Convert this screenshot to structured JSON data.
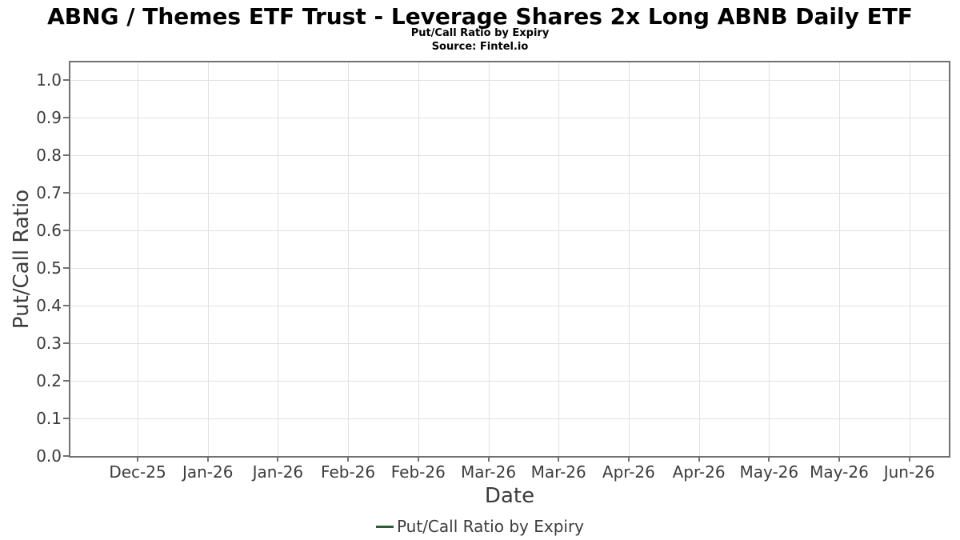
{
  "chart_data": {
    "type": "line",
    "title": "ABNG / Themes ETF Trust - Leverage Shares 2x Long ABNB Daily ETF",
    "subtitle": "Put/Call Ratio by Expiry",
    "source": "Source: Fintel.io",
    "xlabel": "Date",
    "ylabel": "Put/Call Ratio",
    "x_tick_labels": [
      "Dec-25",
      "Jan-26",
      "Jan-26",
      "Feb-26",
      "Feb-26",
      "Mar-26",
      "Mar-26",
      "Apr-26",
      "Apr-26",
      "May-26",
      "May-26",
      "Jun-26"
    ],
    "y_ticks": [
      0.0,
      0.1,
      0.2,
      0.3,
      0.4,
      0.5,
      0.6,
      0.7,
      0.8,
      0.9,
      1.0
    ],
    "y_tick_labels": [
      "0.0",
      "0.1",
      "0.2",
      "0.3",
      "0.4",
      "0.5",
      "0.6",
      "0.7",
      "0.8",
      "0.9",
      "1.0"
    ],
    "ylim": [
      0.0,
      1.05
    ],
    "grid": true,
    "legend_position": "bottom-center",
    "series": [
      {
        "name": "Put/Call Ratio by Expiry",
        "color": "#2a5f35",
        "x": [],
        "values": []
      }
    ]
  },
  "colors": {
    "background": "#ffffff",
    "title_text": "#000000",
    "axis_text": "#3c3c3c",
    "spine": "#717171",
    "gridline": "#e1e1e1",
    "series_green": "#2a5f35"
  }
}
